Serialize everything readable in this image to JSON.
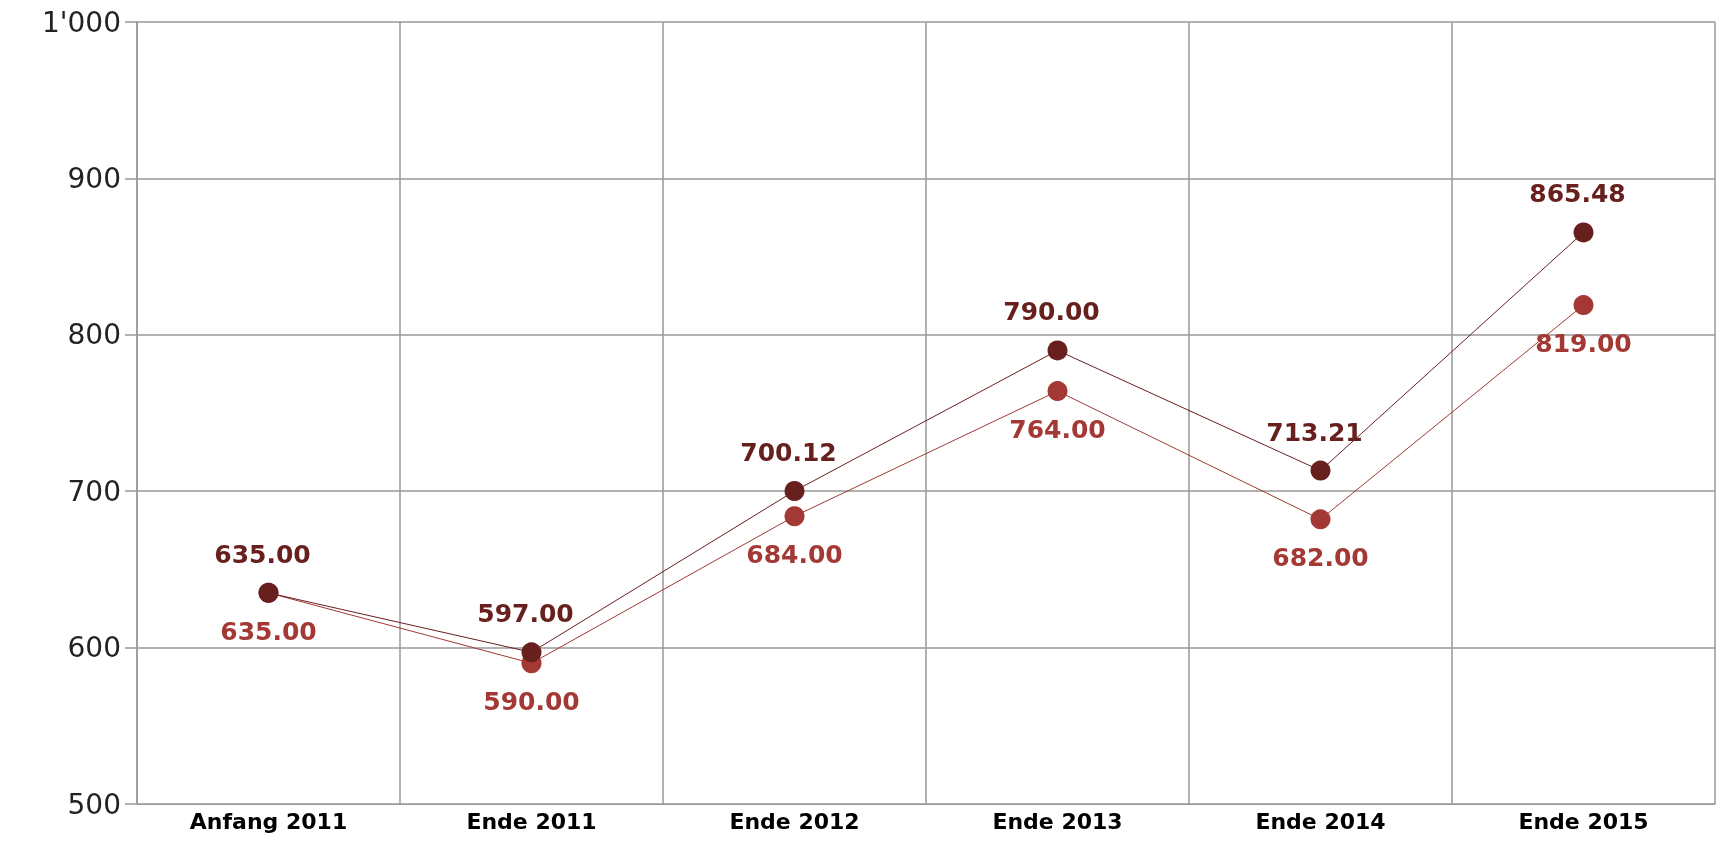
{
  "chart_data": {
    "type": "line",
    "categories": [
      "Anfang 2011",
      "Ende 2011",
      "Ende 2012",
      "Ende 2013",
      "Ende 2014",
      "Ende 2015"
    ],
    "series": [
      {
        "color": "#68201f",
        "values": [
          635.0,
          597.0,
          700.12,
          790.0,
          713.21,
          865.48
        ],
        "value_labels": [
          "635.00",
          "597.00",
          "700.12",
          "790.00",
          "713.21",
          "865.48"
        ]
      },
      {
        "color": "#a33834",
        "values": [
          635.0,
          590.0,
          684.0,
          764.0,
          682.0,
          819.0
        ],
        "value_labels": [
          "635.00",
          "590.00",
          "684.00",
          "764.00",
          "682.00",
          "819.00"
        ]
      }
    ],
    "ylim": [
      500,
      1000
    ],
    "yticks": [
      500,
      600,
      700,
      800,
      900,
      {
        "value": 1000,
        "label": "1'000"
      }
    ],
    "grid": true,
    "marker": "circle",
    "line_style": "solid"
  }
}
